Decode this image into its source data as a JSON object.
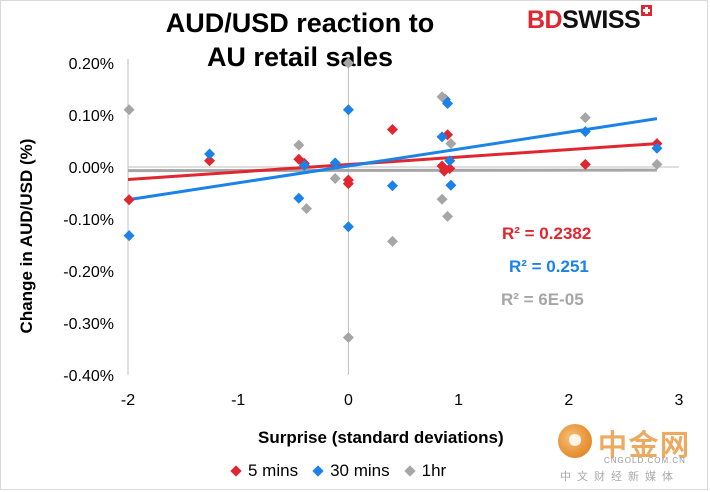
{
  "header": {
    "title_line1": "AUD/USD reaction to",
    "title_line2": "AU retail sales",
    "brand_left": "BD",
    "brand_right": "SWISS"
  },
  "watermark": {
    "title": "中金网",
    "url": "CNGOLD.COM.CN",
    "subtitle": "中文财经新媒体",
    "icon": "cngold-logo-icon"
  },
  "chart_data": {
    "type": "scatter",
    "title": "AUD/USD reaction to AU retail sales",
    "xlabel": "Surprise (standard deviations)",
    "ylabel": "Change in AUD/USD (%)",
    "xlim": [
      -2,
      3
    ],
    "ylim": [
      -0.4,
      0.2
    ],
    "x_ticks": [
      "-2",
      "-1",
      "0",
      "1",
      "2",
      "3"
    ],
    "y_ticks": [
      "-0.40%",
      "-0.30%",
      "-0.20%",
      "-0.10%",
      "0.00%",
      "0.10%",
      "0.20%"
    ],
    "y_tick_values": [
      -0.4,
      -0.3,
      -0.2,
      -0.1,
      0.0,
      0.1,
      0.2
    ],
    "x_tick_values": [
      -2,
      -1,
      0,
      1,
      2,
      3
    ],
    "grid": false,
    "legend_position": "bottom",
    "series": [
      {
        "name": "5 mins",
        "color": "#e0262f",
        "marker": "diamond",
        "points": [
          [
            -1.99,
            -0.063
          ],
          [
            -1.26,
            0.012
          ],
          [
            -0.45,
            0.015
          ],
          [
            -0.4,
            0.007
          ],
          [
            0.0,
            -0.025
          ],
          [
            0.0,
            -0.032
          ],
          [
            0.4,
            0.072
          ],
          [
            0.85,
            0.002
          ],
          [
            0.87,
            -0.008
          ],
          [
            0.9,
            0.062
          ],
          [
            0.92,
            -0.003
          ],
          [
            2.15,
            0.005
          ],
          [
            2.8,
            0.045
          ]
        ],
        "trendline": {
          "x": [
            -2,
            2.8
          ],
          "y": [
            -0.024,
            0.045
          ]
        },
        "r2_label": "R² = 0.2382"
      },
      {
        "name": "30 mins",
        "color": "#1a82e8",
        "marker": "diamond",
        "points": [
          [
            -1.99,
            -0.132
          ],
          [
            -1.26,
            0.025
          ],
          [
            -0.45,
            -0.06
          ],
          [
            -0.4,
            0.003
          ],
          [
            -0.12,
            0.008
          ],
          [
            0.0,
            0.11
          ],
          [
            0.0,
            -0.115
          ],
          [
            0.4,
            -0.036
          ],
          [
            0.85,
            0.058
          ],
          [
            0.88,
            0.13
          ],
          [
            0.9,
            0.122
          ],
          [
            0.92,
            0.012
          ],
          [
            0.93,
            -0.035
          ],
          [
            2.15,
            0.068
          ],
          [
            2.8,
            0.036
          ]
        ],
        "trendline": {
          "x": [
            -2,
            2.8
          ],
          "y": [
            -0.063,
            0.093
          ]
        },
        "r2_label": "R² = 0.251"
      },
      {
        "name": "1hr",
        "color": "#a6a6a6",
        "marker": "diamond",
        "points": [
          [
            -1.99,
            0.11
          ],
          [
            -0.45,
            0.042
          ],
          [
            -0.38,
            -0.08
          ],
          [
            -0.12,
            -0.022
          ],
          [
            0.0,
            -0.328
          ],
          [
            0.0,
            0.2
          ],
          [
            0.4,
            -0.143
          ],
          [
            0.85,
            0.135
          ],
          [
            0.85,
            -0.062
          ],
          [
            0.9,
            -0.095
          ],
          [
            0.93,
            0.045
          ],
          [
            2.15,
            0.095
          ],
          [
            2.8,
            0.005
          ]
        ],
        "trendline": {
          "x": [
            -2,
            2.8
          ],
          "y": [
            -0.007,
            -0.006
          ]
        },
        "r2_label": "R² = 6E-05"
      }
    ]
  }
}
